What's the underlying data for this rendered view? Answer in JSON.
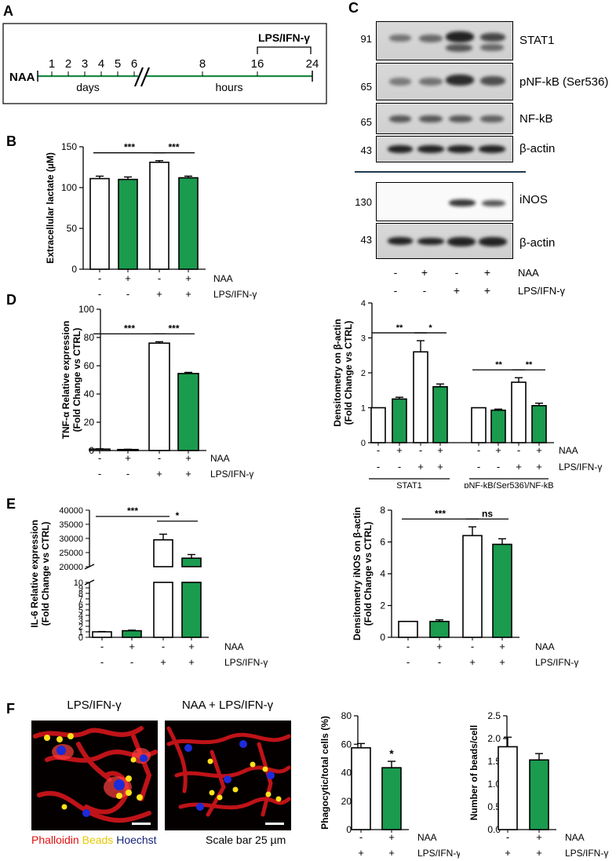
{
  "panels": {
    "A": {
      "letter": "A",
      "naa_label": "NAA",
      "days_ticks": [
        "1",
        "2",
        "3",
        "4",
        "5",
        "6"
      ],
      "hour_ticks": [
        "8",
        "16",
        "24"
      ],
      "days_label": "days",
      "hours_label": "hours",
      "treatment_label": "LPS/IFN-γ"
    },
    "B": {
      "letter": "B"
    },
    "C": {
      "letter": "C",
      "blots_top": [
        {
          "mw": "91",
          "label": "STAT1"
        },
        {
          "mw": "65",
          "label": "pNF-kB (Ser536)"
        },
        {
          "mw": "65",
          "label": "NF-kB"
        },
        {
          "mw": "43",
          "label": "β-actin"
        }
      ],
      "blots_bottom": [
        {
          "mw": "130",
          "label": "iNOS"
        },
        {
          "mw": "43",
          "label": "β-actin"
        }
      ],
      "naa_signs": [
        "-",
        "+",
        "-",
        "+"
      ],
      "lps_signs": [
        "-",
        "-",
        "+",
        "+"
      ],
      "naa_label": "NAA",
      "lps_label": "LPS/IFN-γ"
    },
    "D": {
      "letter": "D"
    },
    "E": {
      "letter": "E"
    },
    "F": {
      "letter": "F",
      "img1_title": "LPS/IFN-γ",
      "img2_title": "NAA + LPS/IFN-γ",
      "legend_phalloidin": "Phalloidin",
      "legend_beads": "Beads",
      "legend_hoechst": "Hoechst",
      "scale_bar": "Scale bar 25 µm"
    }
  },
  "colors": {
    "green": "#1a9b4e",
    "white": "#ffffff",
    "stat_line": "#000000",
    "divider": "#1f3a4f"
  },
  "chart_data": [
    {
      "id": "B",
      "type": "bar",
      "ylabel": "Extracellular lactate (µM)",
      "ylim": [
        0,
        150
      ],
      "yticks": [
        0,
        50,
        100,
        150
      ],
      "values": [
        111,
        110,
        131,
        112
      ],
      "errors": [
        3,
        3,
        2,
        2
      ],
      "fills": [
        "white",
        "green",
        "white",
        "green"
      ],
      "rows": [
        {
          "label": "NAA",
          "signs": [
            "-",
            "+",
            "-",
            "+"
          ]
        },
        {
          "label": "LPS/IFN-γ",
          "signs": [
            "-",
            "-",
            "+",
            "+"
          ]
        }
      ],
      "sig": [
        {
          "from": 0,
          "to": 2,
          "text": "***"
        },
        {
          "from": 2,
          "to": 3,
          "text": "***"
        }
      ]
    },
    {
      "id": "D1",
      "type": "bar",
      "ylabel": "TNF-α Relative expression",
      "ylabel2": "(Fold Change vs CTRL)",
      "ylim": [
        0,
        100
      ],
      "yticks": [
        0,
        20,
        40,
        60,
        80,
        100
      ],
      "values": [
        1,
        0.7,
        76,
        54.5
      ],
      "errors": [
        0.2,
        0.2,
        1,
        0.8
      ],
      "fills": [
        "white",
        "green",
        "white",
        "green"
      ],
      "rows": [
        {
          "label": "NAA",
          "signs": [
            "-",
            "+",
            "-",
            "+"
          ]
        },
        {
          "label": "LPS/IFN-γ",
          "signs": [
            "-",
            "-",
            "+",
            "+"
          ]
        }
      ],
      "sig": [
        {
          "from": 0,
          "to": 2,
          "text": "***"
        },
        {
          "from": 2,
          "to": 3,
          "text": "***"
        }
      ]
    },
    {
      "id": "D2",
      "type": "bar",
      "ylabel": "Densitometry on β-actin",
      "ylabel2": "(Fold Change vs CTRL)",
      "ylim": [
        0,
        4
      ],
      "yticks": [
        0,
        1,
        2,
        3,
        4
      ],
      "groups": [
        "STAT1",
        "pNF-kB(Ser536)/NF-kB"
      ],
      "values": [
        1,
        1.25,
        2.6,
        1.6,
        1,
        0.93,
        1.73,
        1.06
      ],
      "errors": [
        0,
        0.05,
        0.32,
        0.08,
        0,
        0.03,
        0.13,
        0.07
      ],
      "fills": [
        "white",
        "green",
        "white",
        "green",
        "white",
        "green",
        "white",
        "green"
      ],
      "rows": [
        {
          "label": "NAA",
          "signs": [
            "-",
            "+",
            "-",
            "+",
            "-",
            "+",
            "-",
            "+"
          ]
        },
        {
          "label": "LPS/IFN-γ",
          "signs": [
            "-",
            "-",
            "+",
            "+",
            "-",
            "-",
            "+",
            "+"
          ]
        }
      ],
      "sig": [
        {
          "from": 0,
          "to": 2,
          "text": "**"
        },
        {
          "from": 2,
          "to": 3,
          "text": "*"
        },
        {
          "from": 4,
          "to": 6,
          "text": "**"
        },
        {
          "from": 6,
          "to": 7,
          "text": "**"
        }
      ]
    },
    {
      "id": "E1",
      "type": "bar",
      "broken_axis": true,
      "ylabel": "IL-6 Relative expression",
      "ylabel2": "(Fold Change vs CTRL)",
      "yticks_lower": [
        0,
        1,
        2,
        3,
        4,
        5,
        6,
        7,
        8,
        9,
        10
      ],
      "yticks_upper": [
        20000,
        25000,
        30000,
        35000,
        40000
      ],
      "values": [
        1,
        1.2,
        29500,
        23000
      ],
      "errors": [
        0.05,
        0.1,
        2000,
        1300
      ],
      "fills": [
        "white",
        "green",
        "white",
        "green"
      ],
      "rows": [
        {
          "label": "NAA",
          "signs": [
            "-",
            "+",
            "-",
            "+"
          ]
        },
        {
          "label": "LPS/IFN-γ",
          "signs": [
            "-",
            "-",
            "+",
            "+"
          ]
        }
      ],
      "sig": [
        {
          "from": 0,
          "to": 2,
          "text": "***"
        },
        {
          "from": 2,
          "to": 3,
          "text": "*"
        }
      ]
    },
    {
      "id": "E2",
      "type": "bar",
      "ylabel": "Densitometry iNOS on β-actin",
      "ylabel2": "(Fold Change vs CTRL)",
      "ylim": [
        0,
        8
      ],
      "yticks": [
        0,
        2,
        4,
        6,
        8
      ],
      "values": [
        1,
        1,
        6.4,
        5.85
      ],
      "errors": [
        0,
        0.1,
        0.55,
        0.35
      ],
      "fills": [
        "white",
        "green",
        "white",
        "green"
      ],
      "rows": [
        {
          "label": "NAA",
          "signs": [
            "-",
            "+",
            "-",
            "+"
          ]
        },
        {
          "label": "LPS/IFN-γ",
          "signs": [
            "-",
            "-",
            "+",
            "+"
          ]
        }
      ],
      "sig": [
        {
          "from": 0,
          "to": 2,
          "text": "***"
        },
        {
          "from": 2,
          "to": 3,
          "text": "ns"
        }
      ]
    },
    {
      "id": "F1",
      "type": "bar",
      "ylabel": "Phagocytic/total cells (%)",
      "ylim": [
        0,
        80
      ],
      "yticks": [
        0,
        20,
        40,
        60,
        80
      ],
      "values": [
        57.5,
        43.5
      ],
      "errors": [
        3,
        4.5
      ],
      "fills": [
        "white",
        "green"
      ],
      "rows": [
        {
          "label": "NAA",
          "signs": [
            "-",
            "+"
          ]
        },
        {
          "label": "LPS/IFN-γ",
          "signs": [
            "+",
            "+"
          ]
        }
      ],
      "marks": [
        {
          "bar": 1,
          "text": "*"
        }
      ]
    },
    {
      "id": "F2",
      "type": "bar",
      "ylabel": "Number of beads/cell",
      "ylim": [
        0,
        2.5
      ],
      "yticks": [
        "0.0",
        "0.5",
        "1.0",
        "1.5",
        "2.0",
        "2.5"
      ],
      "values": [
        1.82,
        1.53
      ],
      "errors": [
        0.21,
        0.14
      ],
      "fills": [
        "white",
        "green"
      ],
      "rows": [
        {
          "label": "NAA",
          "signs": [
            "-",
            "+"
          ]
        },
        {
          "label": "LPS/IFN-γ",
          "signs": [
            "+",
            "+"
          ]
        }
      ]
    }
  ]
}
